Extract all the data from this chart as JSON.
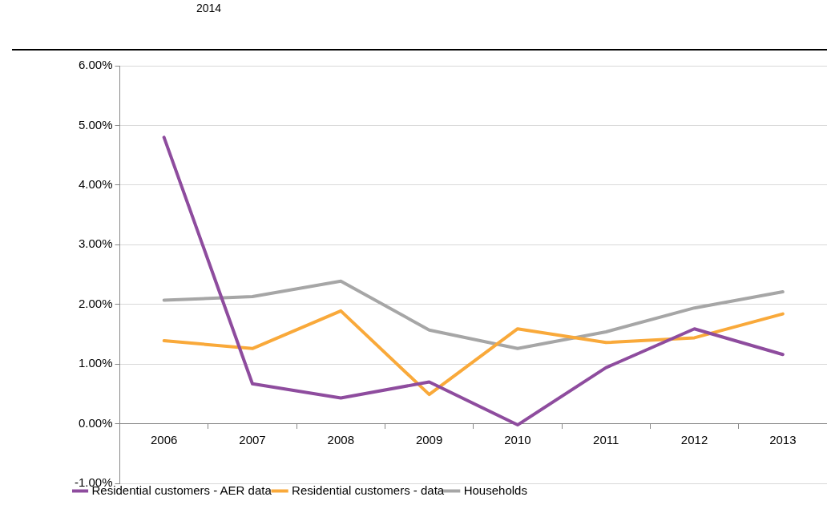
{
  "chart_data": {
    "type": "line",
    "categories": [
      "2006",
      "2007",
      "2008",
      "2009",
      "2010",
      "2011",
      "2012",
      "2013"
    ],
    "series": [
      {
        "name": "Residential customers - AER data",
        "color": "#8e4c9e",
        "values": [
          4.8,
          0.67,
          0.43,
          0.7,
          -0.02,
          0.94,
          1.59,
          1.16
        ]
      },
      {
        "name": "Residential customers - data",
        "color": "#f9a93a",
        "values": [
          1.39,
          1.26,
          1.89,
          0.49,
          1.59,
          1.36,
          1.44,
          1.84
        ]
      },
      {
        "name": "Households",
        "color": "#a6a6a6",
        "values": [
          2.07,
          2.13,
          2.39,
          1.57,
          1.26,
          1.54,
          1.94,
          2.21
        ]
      }
    ],
    "ylim": [
      -1,
      6
    ],
    "yticks": [
      {
        "value": -1,
        "label": "-1.00%"
      },
      {
        "value": 0,
        "label": "0.00%"
      },
      {
        "value": 1,
        "label": "1.00%"
      },
      {
        "value": 2,
        "label": "2.00%"
      },
      {
        "value": 3,
        "label": "3.00%"
      },
      {
        "value": 4,
        "label": "4.00%"
      },
      {
        "value": 5,
        "label": "5.00%"
      },
      {
        "value": 6,
        "label": "6.00%"
      }
    ],
    "grid": "y",
    "legend": "bottom",
    "marker": "none",
    "line_style": "solid",
    "annotations": [
      "2014"
    ]
  }
}
